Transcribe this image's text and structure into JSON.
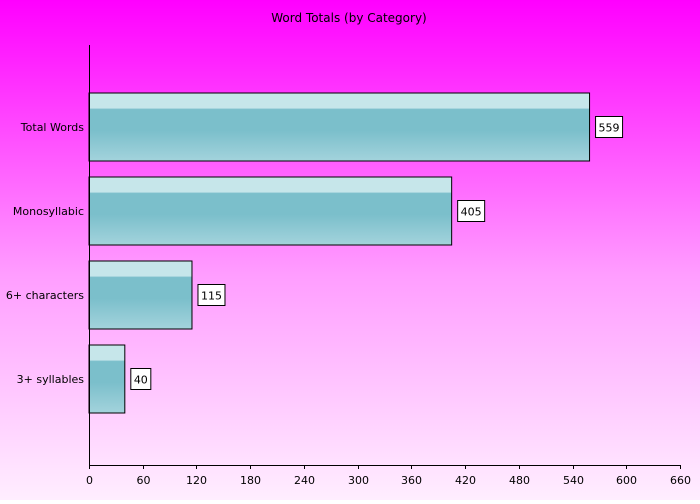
{
  "chart_data": {
    "type": "bar",
    "orientation": "horizontal",
    "title": "Word Totals (by Category)",
    "xlabel": "",
    "ylabel": "",
    "categories": [
      "Total Words",
      "Monosyllabic",
      "6+ characters",
      "3+ syllables"
    ],
    "values": [
      559,
      405,
      115,
      40
    ],
    "data_labels": [
      "559",
      "405",
      "115",
      "40"
    ],
    "xlim": [
      0,
      660
    ],
    "xticks": [
      0,
      60,
      120,
      180,
      240,
      300,
      360,
      420,
      480,
      540,
      600,
      660
    ],
    "grid": false,
    "legend": "none",
    "colors": {
      "bar_top": "#c6e6ea",
      "bar_mid": "#7bbfcb",
      "bar_bottom": "#a3d3dc",
      "bar_stroke": "#000000",
      "axis": "#000000",
      "label_box": "#ffffff"
    }
  }
}
